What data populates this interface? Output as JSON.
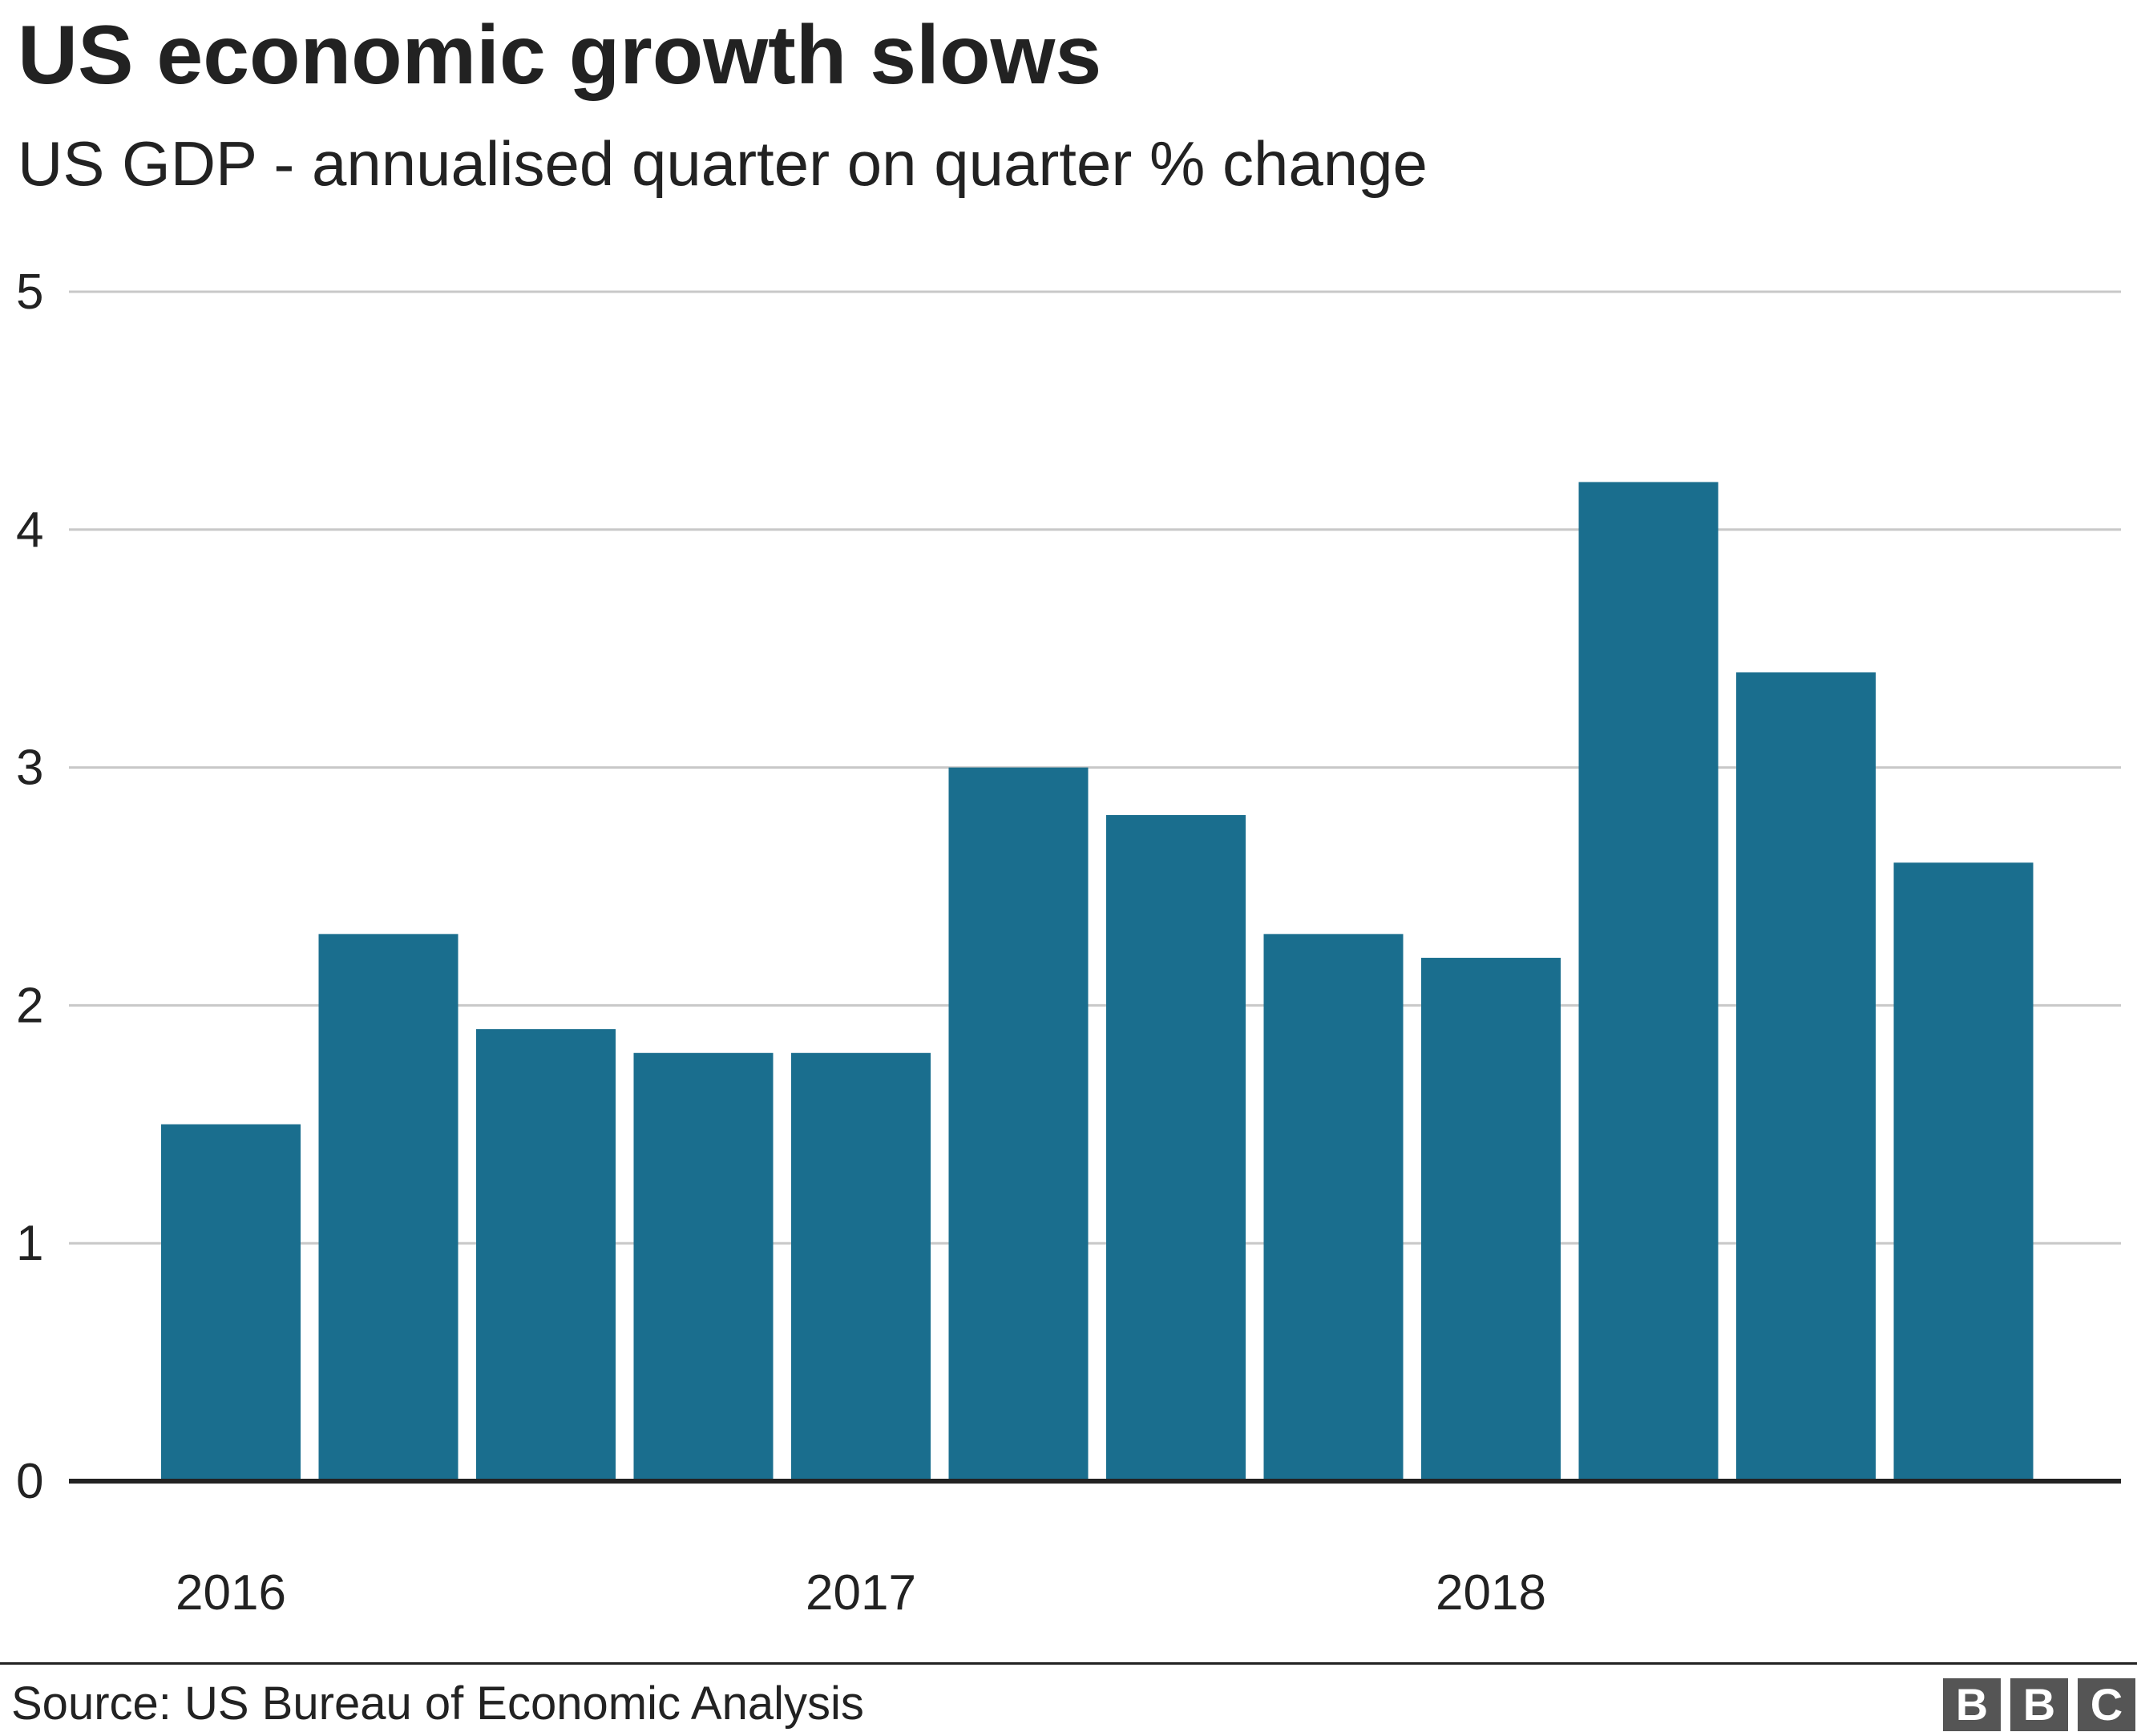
{
  "header": {
    "title": "US economic growth slows",
    "subtitle": "US GDP - annualised quarter on quarter % change"
  },
  "footer": {
    "source": "Source: US Bureau of Economic Analysis",
    "logo_letters": [
      "B",
      "B",
      "C"
    ]
  },
  "colors": {
    "bar": "#1a6e8e",
    "grid": "#c8c8c8",
    "axis": "#222222",
    "text": "#222222",
    "logo_bg": "#555555"
  },
  "chart_data": {
    "type": "bar",
    "title": "US economic growth slows",
    "subtitle": "US GDP - annualised quarter on quarter % change",
    "xlabel": "",
    "ylabel": "",
    "values": [
      1.5,
      2.3,
      1.9,
      1.8,
      1.8,
      3.0,
      2.8,
      2.3,
      2.2,
      4.2,
      3.4,
      2.6
    ],
    "x_tick_labels": [
      {
        "label": "2016",
        "bar_index": 0
      },
      {
        "label": "2017",
        "bar_index": 4
      },
      {
        "label": "2018",
        "bar_index": 8
      }
    ],
    "y_ticks": [
      0,
      1,
      2,
      3,
      4,
      5
    ],
    "ylim": [
      0,
      5
    ],
    "grid": true,
    "legend": "none"
  }
}
